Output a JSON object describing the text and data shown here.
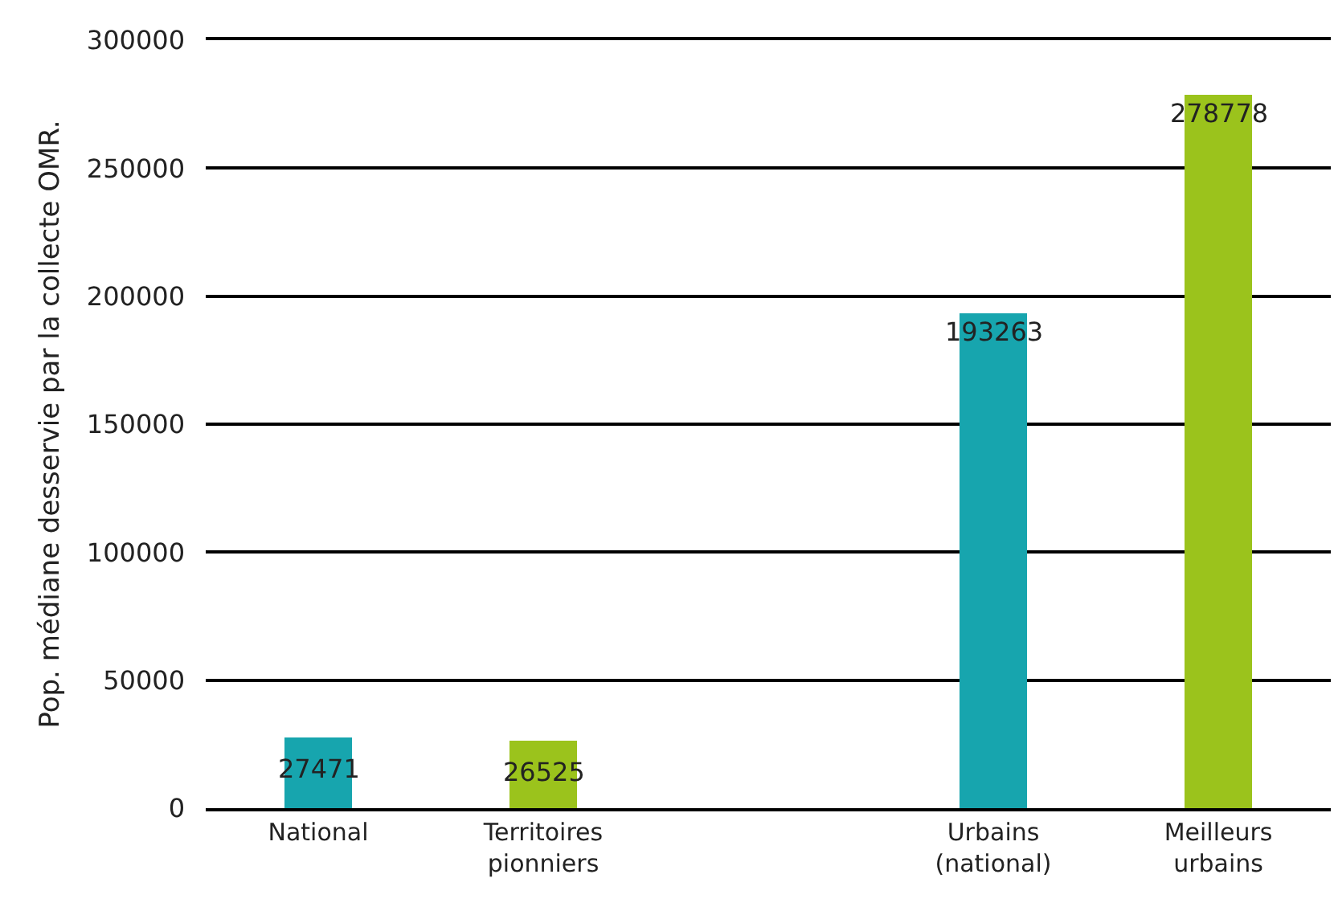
{
  "chart_data": {
    "type": "bar",
    "ylabel": "Pop. médiane desservie par la collecte OMR.",
    "categories": [
      "National",
      "Territoires pionniers",
      null,
      "Urbains (national)",
      "Meilleurs urbains"
    ],
    "values": [
      27471,
      26525,
      null,
      193263,
      278778
    ],
    "colors": [
      "#17a5ae",
      "#9bc31c",
      null,
      "#17a5ae",
      "#9bc31c"
    ],
    "ylim": [
      0,
      300000
    ],
    "yticks": [
      0,
      50000,
      100000,
      150000,
      200000,
      250000,
      300000
    ],
    "grid": "y",
    "data_labels": true
  }
}
